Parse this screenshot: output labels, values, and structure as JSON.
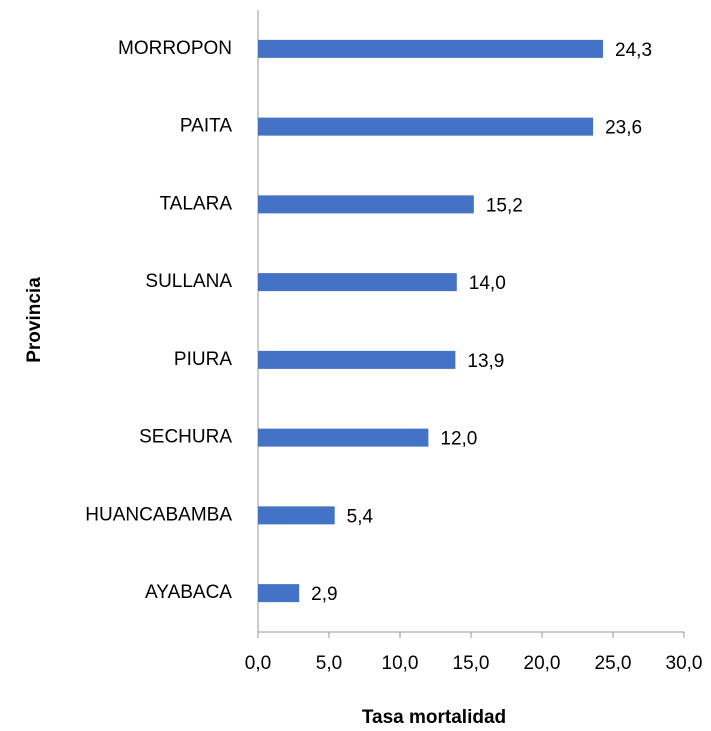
{
  "chart_data": {
    "type": "bar",
    "orientation": "horizontal",
    "categories": [
      "MORROPON",
      "PAITA",
      "TALARA",
      "SULLANA",
      "PIURA",
      "SECHURA",
      "HUANCABAMBA",
      "AYABACA"
    ],
    "values": [
      24.3,
      23.6,
      15.2,
      14.0,
      13.9,
      12.0,
      5.4,
      2.9
    ],
    "value_labels": [
      "24,3",
      "23,6",
      "15,2",
      "14,0",
      "13,9",
      "12,0",
      "5,4",
      "2,9"
    ],
    "color": "#4472c4",
    "x_label": "Tasa mortalidad",
    "y_label": "Provincia",
    "xlim": [
      0,
      30
    ],
    "xticks": [
      {
        "value": 0,
        "label": "0,0"
      },
      {
        "value": 5,
        "label": "5,0"
      },
      {
        "value": 10,
        "label": "10,0"
      },
      {
        "value": 15,
        "label": "15,0"
      },
      {
        "value": 20,
        "label": "20,0"
      },
      {
        "value": 25,
        "label": "25,0"
      },
      {
        "value": 30,
        "label": "30,0"
      }
    ],
    "grid": false
  }
}
